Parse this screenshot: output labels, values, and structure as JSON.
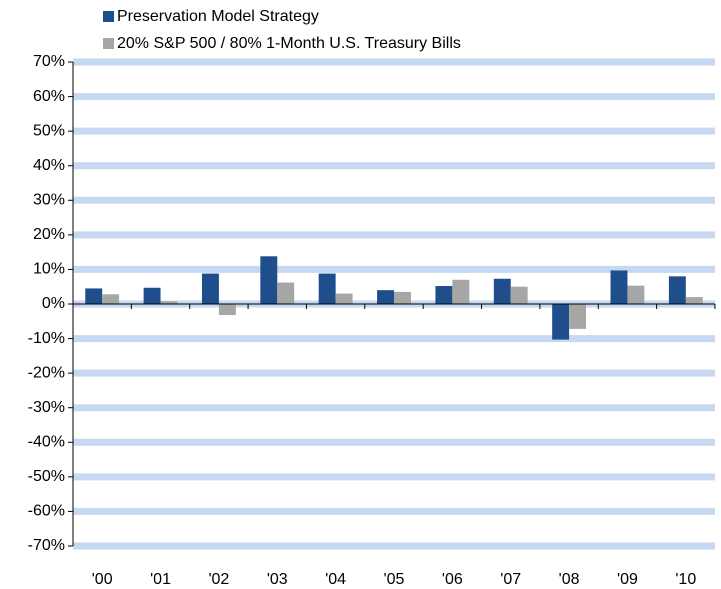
{
  "chart_data": {
    "type": "bar",
    "categories": [
      "'00",
      "'01",
      "'02",
      "'03",
      "'04",
      "'05",
      "'06",
      "'07",
      "'08",
      "'09",
      "'10"
    ],
    "series": [
      {
        "name": "Preservation Model Strategy",
        "color": "#1f4e8c",
        "values": [
          4.5,
          4.7,
          8.8,
          13.8,
          8.8,
          4.0,
          5.2,
          7.3,
          -10.3,
          9.7,
          8.0
        ]
      },
      {
        "name": "20% S&P 500 / 80% 1-Month U.S. Treasury Bills",
        "color": "#a6a6a6",
        "values": [
          2.8,
          0.8,
          -3.2,
          6.2,
          3.0,
          3.5,
          7.0,
          5.0,
          -7.2,
          5.3,
          2.0
        ]
      }
    ],
    "ylim": [
      -70,
      70
    ],
    "yticks": [
      {
        "value": -70,
        "label": "-70%"
      },
      {
        "value": -60,
        "label": "-60%"
      },
      {
        "value": -50,
        "label": "-50%"
      },
      {
        "value": -40,
        "label": "-40%"
      },
      {
        "value": -30,
        "label": "-30%"
      },
      {
        "value": -20,
        "label": "-20%"
      },
      {
        "value": -10,
        "label": "-10%"
      },
      {
        "value": 0,
        "label": "0%"
      },
      {
        "value": 10,
        "label": "10%"
      },
      {
        "value": 20,
        "label": "20%"
      },
      {
        "value": 30,
        "label": "30%"
      },
      {
        "value": 40,
        "label": "40%"
      },
      {
        "value": 50,
        "label": "50%"
      },
      {
        "value": 60,
        "label": "60%"
      },
      {
        "value": 70,
        "label": "70%"
      }
    ],
    "grid": true,
    "grid_color": "#c6d9f1",
    "legend": "top-left"
  }
}
